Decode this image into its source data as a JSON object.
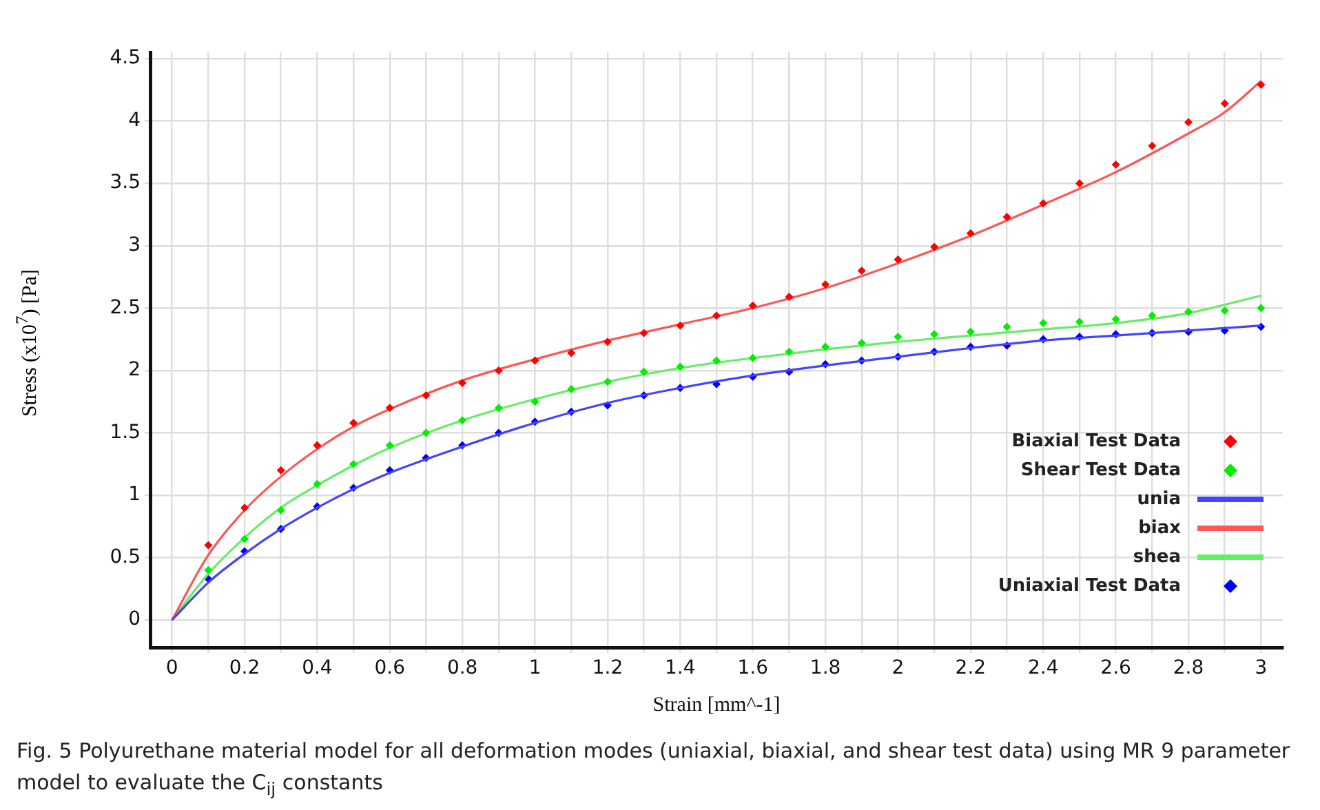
{
  "chart_data": {
    "type": "scatter",
    "xlabel": "Strain [mm^-1]",
    "ylabel": "Stress (x10$^{7}$) [Pa]",
    "annotations": [
      "Fig. 5  Polyurethane material model for all deformation modes (uniaxial, biaxial, and shear test data) using MR 9 parameter model to evaluate the C$_{ij}$ constants"
    ],
    "xlim": [
      -0.06,
      3.06
    ],
    "ylim": [
      -0.22,
      4.55
    ],
    "xticks": [
      0,
      {
        "value": 0.1,
        "label": null
      },
      0.2,
      {
        "value": 0.3,
        "label": null
      },
      0.4,
      {
        "value": 0.5,
        "label": null
      },
      0.6,
      {
        "value": 0.7,
        "label": null
      },
      0.8,
      {
        "value": 0.9,
        "label": null
      },
      1,
      {
        "value": 1.1,
        "label": null
      },
      1.2,
      {
        "value": 1.3,
        "label": null
      },
      1.4,
      {
        "value": 1.5,
        "label": null
      },
      1.6,
      {
        "value": 1.7,
        "label": null
      },
      1.8,
      {
        "value": 1.9,
        "label": null
      },
      2,
      {
        "value": 2.1,
        "label": null
      },
      2.2,
      {
        "value": 2.3,
        "label": null
      },
      2.4,
      {
        "value": 2.5,
        "label": null
      },
      2.6,
      {
        "value": 2.7,
        "label": null
      },
      2.8,
      {
        "value": 2.9,
        "label": null
      },
      3
    ],
    "yticks": [
      0,
      0.5,
      1,
      1.5,
      2,
      2.5,
      3,
      3.5,
      4,
      4.5
    ],
    "grid": true,
    "legend": "bottom right",
    "line_style": "solid",
    "series": [
      {
        "name": "Biaxial Test Data",
        "marker": "diamond",
        "color": "#ff0000",
        "x": [
          0.1,
          0.2,
          0.3,
          0.4,
          0.5,
          0.6,
          0.7,
          0.8,
          0.9,
          1.0,
          1.1,
          1.2,
          1.3,
          1.4,
          1.5,
          1.6,
          1.7,
          1.8,
          1.9,
          2.0,
          2.1,
          2.2,
          2.3,
          2.4,
          2.5,
          2.6,
          2.7,
          2.8,
          2.9,
          3.0
        ],
        "values": [
          0.6,
          0.9,
          1.2,
          1.4,
          1.58,
          1.7,
          1.8,
          1.9,
          2.0,
          2.08,
          2.14,
          2.23,
          2.3,
          2.36,
          2.44,
          2.52,
          2.59,
          2.69,
          2.8,
          2.89,
          2.99,
          3.1,
          3.23,
          3.34,
          3.5,
          3.65,
          3.8,
          3.99,
          4.14,
          4.29
        ]
      },
      {
        "name": "Shear Test Data",
        "marker": "diamond",
        "color": "#00ee00",
        "x": [
          0.1,
          0.2,
          0.3,
          0.4,
          0.5,
          0.6,
          0.7,
          0.8,
          0.9,
          1.0,
          1.1,
          1.2,
          1.3,
          1.4,
          1.5,
          1.6,
          1.7,
          1.8,
          1.9,
          2.0,
          2.1,
          2.2,
          2.3,
          2.4,
          2.5,
          2.6,
          2.7,
          2.8,
          2.9,
          3.0
        ],
        "values": [
          0.4,
          0.65,
          0.88,
          1.09,
          1.25,
          1.4,
          1.5,
          1.6,
          1.7,
          1.75,
          1.85,
          1.91,
          1.99,
          2.03,
          2.08,
          2.1,
          2.15,
          2.19,
          2.22,
          2.27,
          2.29,
          2.31,
          2.35,
          2.38,
          2.39,
          2.41,
          2.44,
          2.47,
          2.48,
          2.5
        ]
      },
      {
        "name": "unia",
        "type": "line",
        "color": "#4444ff",
        "x": [
          0,
          0.1,
          0.2,
          0.3,
          0.4,
          0.5,
          0.6,
          0.8,
          1.0,
          1.2,
          1.4,
          1.6,
          1.8,
          2.0,
          2.2,
          2.4,
          2.6,
          2.8,
          3.0
        ],
        "values": [
          0,
          0.3,
          0.53,
          0.73,
          0.9,
          1.05,
          1.18,
          1.39,
          1.58,
          1.74,
          1.86,
          1.96,
          2.04,
          2.11,
          2.18,
          2.24,
          2.28,
          2.32,
          2.36
        ]
      },
      {
        "name": "biax",
        "type": "line",
        "color": "#ff5555",
        "x": [
          0,
          0.1,
          0.2,
          0.3,
          0.4,
          0.5,
          0.6,
          0.8,
          1.0,
          1.2,
          1.4,
          1.6,
          1.8,
          2.0,
          2.2,
          2.4,
          2.6,
          2.8,
          2.9,
          3.0
        ],
        "values": [
          0,
          0.52,
          0.88,
          1.15,
          1.37,
          1.55,
          1.69,
          1.92,
          2.09,
          2.24,
          2.37,
          2.5,
          2.66,
          2.86,
          3.08,
          3.33,
          3.59,
          3.9,
          4.07,
          4.32
        ]
      },
      {
        "name": "shea",
        "type": "line",
        "color": "#66ee66",
        "x": [
          0,
          0.1,
          0.2,
          0.3,
          0.4,
          0.5,
          0.6,
          0.8,
          1.0,
          1.2,
          1.4,
          1.6,
          1.8,
          2.0,
          2.2,
          2.4,
          2.6,
          2.8,
          3.0
        ],
        "values": [
          0,
          0.37,
          0.66,
          0.9,
          1.08,
          1.24,
          1.38,
          1.6,
          1.77,
          1.91,
          2.02,
          2.1,
          2.17,
          2.23,
          2.28,
          2.33,
          2.38,
          2.46,
          2.6
        ]
      },
      {
        "name": "Uniaxial Test Data",
        "marker": "diamond",
        "color": "#0000ff",
        "x": [
          0.1,
          0.2,
          0.3,
          0.4,
          0.5,
          0.6,
          0.7,
          0.8,
          0.9,
          1.0,
          1.1,
          1.2,
          1.3,
          1.4,
          1.5,
          1.6,
          1.7,
          1.8,
          1.9,
          2.0,
          2.1,
          2.2,
          2.3,
          2.4,
          2.5,
          2.6,
          2.7,
          2.8,
          2.9,
          3.0
        ],
        "values": [
          0.33,
          0.55,
          0.73,
          0.91,
          1.06,
          1.2,
          1.3,
          1.4,
          1.5,
          1.59,
          1.67,
          1.72,
          1.8,
          1.86,
          1.89,
          1.95,
          1.99,
          2.05,
          2.08,
          2.11,
          2.15,
          2.19,
          2.2,
          2.25,
          2.27,
          2.29,
          2.3,
          2.31,
          2.32,
          2.35
        ]
      }
    ]
  }
}
